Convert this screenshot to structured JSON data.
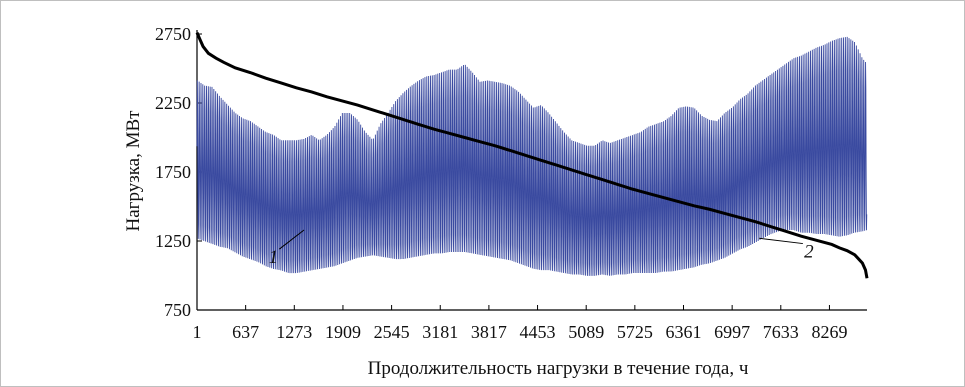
{
  "chart_data": {
    "type": "line",
    "title": "",
    "xlabel": "Продолжительность нагрузки в течение года, ч",
    "ylabel": "Нагрузка, МВт",
    "xlim": [
      1,
      8760
    ],
    "ylim": [
      750,
      2750
    ],
    "xticks": [
      1,
      637,
      1273,
      1909,
      2545,
      3181,
      3817,
      4453,
      5089,
      5725,
      6361,
      6997,
      7633,
      8269
    ],
    "yticks": [
      750,
      1250,
      1750,
      2250,
      2750
    ],
    "grid": false,
    "legend": "none",
    "annotations": [
      {
        "text": "1",
        "x": 1000,
        "y": 1090,
        "target_x": 1400,
        "target_y": 1330,
        "series": 0
      },
      {
        "text": "2",
        "x": 8000,
        "y": 1130,
        "target_x": 7350,
        "target_y": 1270,
        "series": 1
      }
    ],
    "series": [
      {
        "id": "hourly-load",
        "color": "#3a4aa0",
        "x": [
          1,
          100,
          200,
          300,
          400,
          500,
          600,
          700,
          800,
          900,
          1000,
          1100,
          1200,
          1300,
          1400,
          1500,
          1600,
          1700,
          1800,
          1900,
          2000,
          2100,
          2200,
          2300,
          2400,
          2500,
          2600,
          2700,
          2800,
          2900,
          3000,
          3100,
          3200,
          3300,
          3400,
          3500,
          3600,
          3700,
          3800,
          3900,
          4000,
          4100,
          4200,
          4300,
          4400,
          4500,
          4600,
          4700,
          4800,
          4900,
          5000,
          5100,
          5200,
          5300,
          5400,
          5500,
          5600,
          5700,
          5800,
          5900,
          6000,
          6100,
          6200,
          6300,
          6400,
          6500,
          6600,
          6700,
          6800,
          6900,
          7000,
          7100,
          7200,
          7300,
          7400,
          7500,
          7600,
          7700,
          7800,
          7900,
          8000,
          8100,
          8200,
          8300,
          8400,
          8500,
          8600,
          8700,
          8760
        ],
        "daily_max": [
          2440,
          2400,
          2390,
          2320,
          2260,
          2200,
          2160,
          2140,
          2100,
          2060,
          2040,
          2000,
          2000,
          2000,
          2010,
          2040,
          2000,
          2040,
          2100,
          2200,
          2200,
          2150,
          2060,
          2000,
          2120,
          2200,
          2290,
          2350,
          2400,
          2440,
          2470,
          2480,
          2500,
          2520,
          2520,
          2560,
          2500,
          2430,
          2440,
          2430,
          2420,
          2400,
          2360,
          2300,
          2240,
          2260,
          2200,
          2130,
          2060,
          2000,
          1980,
          1960,
          1960,
          2000,
          1980,
          2000,
          2020,
          2040,
          2060,
          2100,
          2120,
          2140,
          2180,
          2240,
          2250,
          2240,
          2180,
          2150,
          2140,
          2200,
          2240,
          2300,
          2340,
          2400,
          2440,
          2480,
          2520,
          2560,
          2600,
          2620,
          2650,
          2680,
          2700,
          2730,
          2750,
          2760,
          2720,
          2600,
          2560
        ],
        "daily_min": [
          1260,
          1240,
          1220,
          1200,
          1190,
          1160,
          1130,
          1110,
          1090,
          1060,
          1040,
          1030,
          1010,
          1010,
          1020,
          1030,
          1040,
          1050,
          1060,
          1080,
          1100,
          1120,
          1130,
          1140,
          1130,
          1120,
          1110,
          1110,
          1120,
          1130,
          1140,
          1150,
          1150,
          1160,
          1160,
          1160,
          1150,
          1140,
          1130,
          1120,
          1110,
          1100,
          1080,
          1060,
          1040,
          1030,
          1030,
          1020,
          1010,
          1000,
          1000,
          990,
          990,
          1000,
          990,
          1000,
          1000,
          1010,
          1010,
          1010,
          1010,
          1020,
          1020,
          1030,
          1040,
          1050,
          1070,
          1080,
          1100,
          1120,
          1150,
          1180,
          1200,
          1230,
          1260,
          1290,
          1310,
          1320,
          1320,
          1300,
          1300,
          1290,
          1290,
          1280,
          1270,
          1280,
          1300,
          1310,
          1320
        ]
      },
      {
        "id": "load-duration-curve",
        "color": "#000000",
        "x": [
          1,
          40,
          80,
          150,
          250,
          350,
          500,
          700,
          900,
          1100,
          1300,
          1500,
          1700,
          1900,
          2100,
          2300,
          2500,
          2700,
          2900,
          3100,
          3300,
          3500,
          3700,
          3900,
          4100,
          4300,
          4500,
          4700,
          4900,
          5100,
          5300,
          5500,
          5700,
          5900,
          6100,
          6300,
          6500,
          6700,
          6900,
          7100,
          7300,
          7500,
          7700,
          7900,
          8100,
          8300,
          8400,
          8500,
          8600,
          8650,
          8700,
          8740,
          8760
        ],
        "y": [
          2760,
          2710,
          2660,
          2610,
          2575,
          2545,
          2505,
          2470,
          2430,
          2395,
          2360,
          2330,
          2295,
          2265,
          2235,
          2200,
          2165,
          2130,
          2095,
          2060,
          2030,
          2000,
          1970,
          1940,
          1905,
          1870,
          1835,
          1800,
          1765,
          1730,
          1695,
          1660,
          1625,
          1595,
          1565,
          1535,
          1505,
          1480,
          1450,
          1420,
          1390,
          1355,
          1320,
          1285,
          1255,
          1225,
          1200,
          1180,
          1150,
          1120,
          1090,
          1040,
          980
        ]
      }
    ]
  }
}
